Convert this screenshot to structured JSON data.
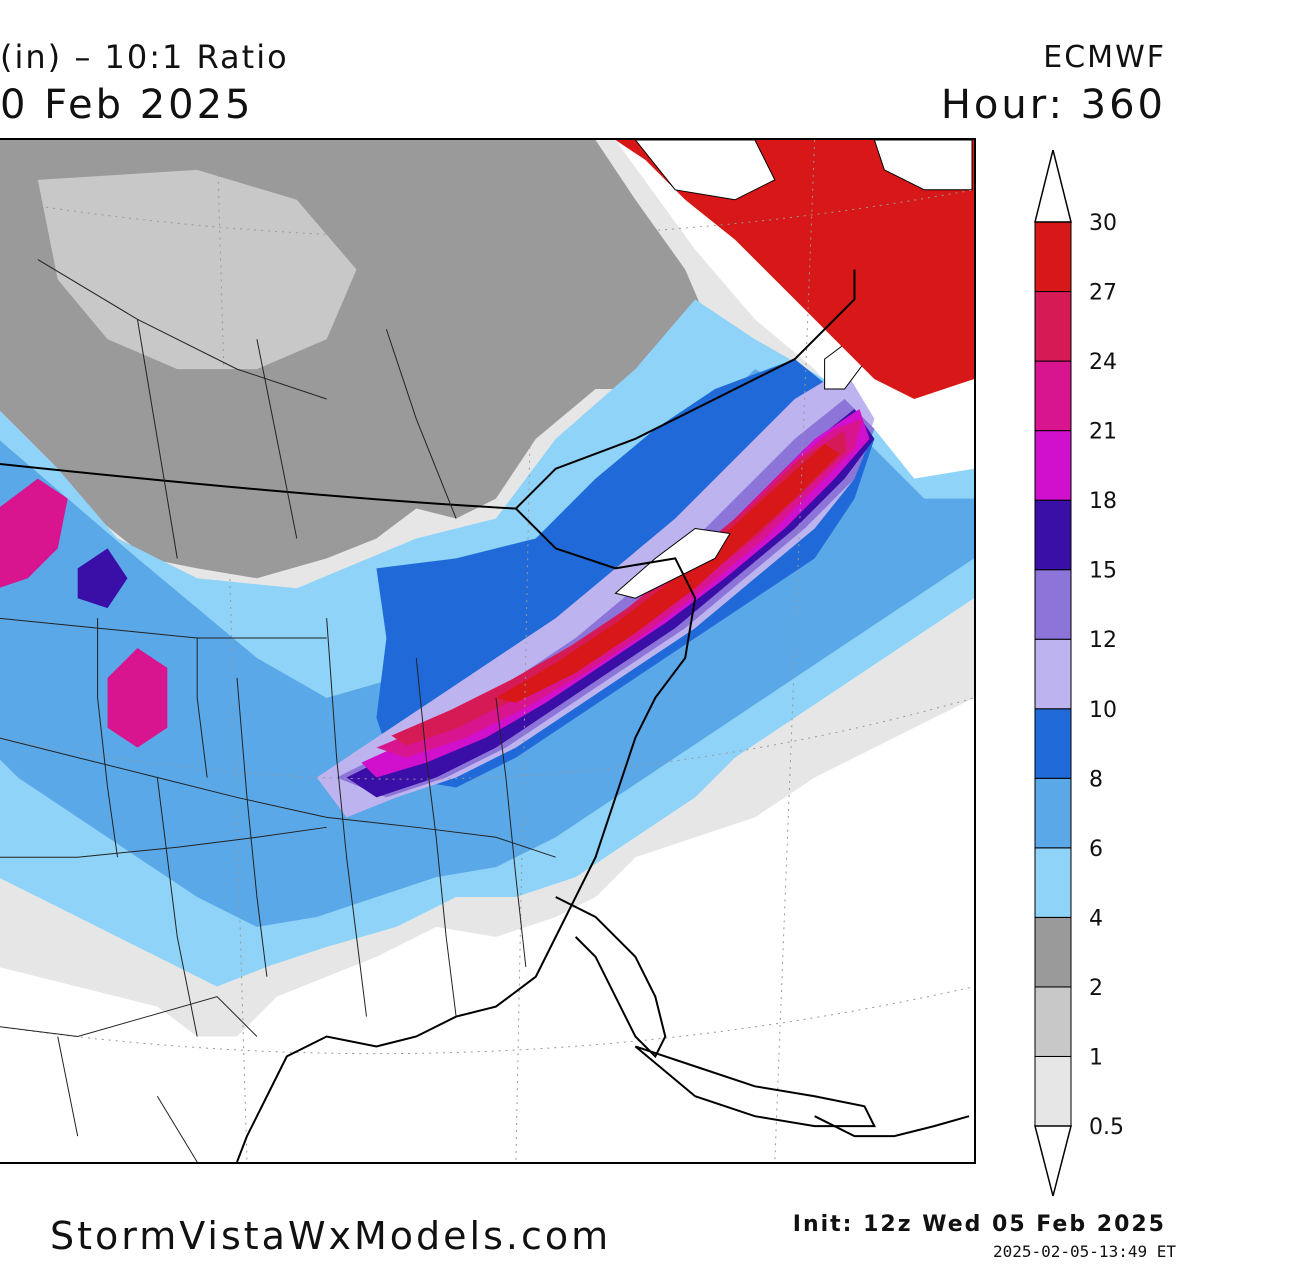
{
  "header": {
    "title_line1": "(in) – 10:1 Ratio",
    "title_line2": "0 Feb 2025",
    "model": "ECMWF",
    "hour": "Hour: 360"
  },
  "legend": {
    "levels": [
      "0.5",
      "1",
      "2",
      "4",
      "6",
      "8",
      "10",
      "12",
      "15",
      "18",
      "21",
      "24",
      "27",
      "30"
    ],
    "colors": [
      "#e6e6e6",
      "#c8c8c8",
      "#9a9a9a",
      "#8fd3f8",
      "#5aa8e8",
      "#1f6ad8",
      "#bdb3ee",
      "#8c74d8",
      "#3a0fa8",
      "#d010cc",
      "#d8148f",
      "#d51a55",
      "#d81818"
    ]
  },
  "footer": {
    "site": "StormVistaWxModels.com",
    "init": "Init: 12z Wed 05 Feb 2025",
    "stamp": "2025-02-05-13:49 ET"
  }
}
